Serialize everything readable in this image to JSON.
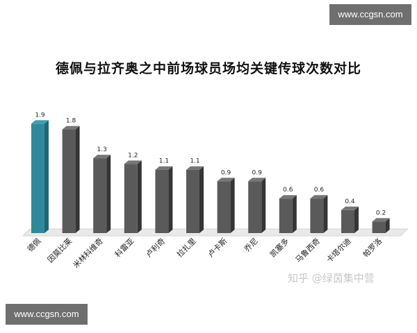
{
  "watermark_top": "www.ccgsn.com",
  "watermark_bottom": "www.ccgsn.com",
  "overlay_watermark": "知乎 @绿茵集中营",
  "colors": {
    "highlight": "#2e8a9b",
    "highlight_side": "#1f6675",
    "highlight_top": "#3b9fb1",
    "bar": "#5a5a5a",
    "bar_side": "#353535",
    "bar_top": "#767676",
    "floor": "#e9e9e9"
  },
  "chart_data": {
    "type": "bar",
    "title": "德佩与拉齐奥之中前场球员场均关键传球次数对比",
    "xlabel": "",
    "ylabel": "",
    "ylim": [
      0,
      2.0
    ],
    "grid": false,
    "legend": "none",
    "categories": [
      "德佩",
      "因莫比莱",
      "米林科维奇",
      "科雷亚",
      "卢利奇",
      "拉扎里",
      "卢卡斯",
      "乔尼",
      "凯塞多",
      "马鲁西奇",
      "卡塔尔迪",
      "帕罗洛"
    ],
    "values": [
      1.9,
      1.8,
      1.3,
      1.2,
      1.1,
      1.1,
      0.9,
      0.9,
      0.6,
      0.6,
      0.4,
      0.2
    ],
    "data_labels": [
      "1.9",
      "1.8",
      "1.3",
      "1.2",
      "1.1",
      "1.1",
      "0.9",
      "0.9",
      "0.6",
      "0.6",
      "0.4",
      "0.2"
    ],
    "highlight_index": 0
  }
}
